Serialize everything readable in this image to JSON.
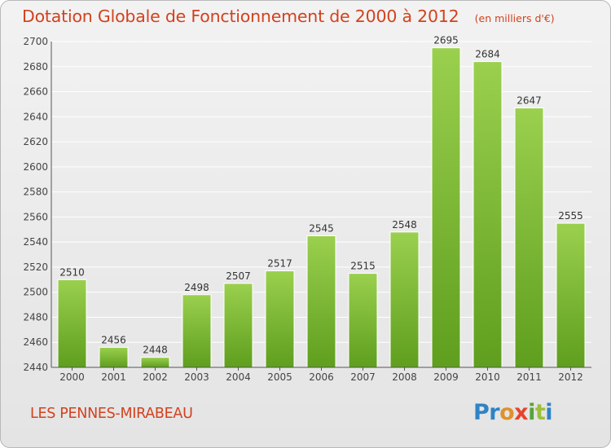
{
  "chart_data": {
    "type": "bar",
    "title": "Dotation Globale de Fonctionnement de 2000 à 2012",
    "unit": "(en milliers d'€)",
    "categories": [
      "2000",
      "2001",
      "2002",
      "2003",
      "2004",
      "2005",
      "2006",
      "2007",
      "2008",
      "2009",
      "2010",
      "2011",
      "2012"
    ],
    "values": [
      2510,
      2456,
      2448,
      2498,
      2507,
      2517,
      2545,
      2515,
      2548,
      2695,
      2684,
      2647,
      2555
    ],
    "value_labels": [
      "2510",
      "2456",
      "2448",
      "2498",
      "2507",
      "2517",
      "2545",
      "2515",
      "2548",
      "2695",
      "2684",
      "2647",
      "2555"
    ],
    "ylim": [
      2440,
      2700
    ],
    "yticks": [
      2440,
      2460,
      2480,
      2500,
      2520,
      2540,
      2560,
      2580,
      2600,
      2620,
      2640,
      2660,
      2680,
      2700
    ],
    "grid": true,
    "legend": "none",
    "bar_color": "#8cc63f",
    "bar_color_dark": "#5a9a1c"
  },
  "footer": {
    "commune": "LES PENNES-MIRABEAU",
    "logo_parts": [
      "Pr",
      "o",
      "x",
      "i",
      "t",
      "i"
    ]
  },
  "colors": {
    "title": "#d2421e",
    "grid": "#ffffff",
    "axis": "#555555"
  }
}
